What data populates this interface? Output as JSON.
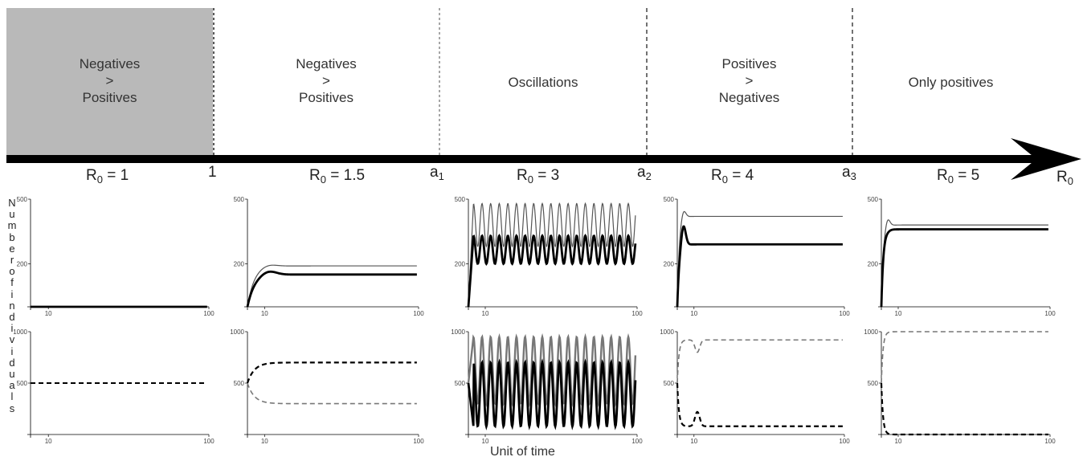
{
  "regions": [
    {
      "lines": [
        "Negatives",
        ">",
        "Positives"
      ],
      "shaded": true
    },
    {
      "lines": [
        "Negatives",
        ">",
        "Positives"
      ],
      "shaded": false
    },
    {
      "lines": [
        "Oscillations"
      ],
      "shaded": false
    },
    {
      "lines": [
        "Positives",
        ">",
        "Negatives"
      ],
      "shaded": false
    },
    {
      "lines": [
        "Only positives"
      ],
      "shaded": false
    }
  ],
  "r0_values": [
    {
      "base": "R",
      "sub": "0",
      "rest": " = 1"
    },
    {
      "base": "R",
      "sub": "0",
      "rest": " = 1.5"
    },
    {
      "base": "R",
      "sub": "0",
      "rest": " = 3"
    },
    {
      "base": "R",
      "sub": "0",
      "rest": " = 4"
    },
    {
      "base": "R",
      "sub": "0",
      "rest": " = 5"
    }
  ],
  "boundaries": [
    {
      "base": "1",
      "sub": ""
    },
    {
      "base": "a",
      "sub": "1"
    },
    {
      "base": "a",
      "sub": "2"
    },
    {
      "base": "a",
      "sub": "3"
    }
  ],
  "axis_end_label": {
    "base": "R",
    "sub": "0"
  },
  "y_axis_title": "Number of individuals",
  "x_axis_title": "Unit of time",
  "colors": {
    "shade": "#b9b9b9",
    "curve_dark": "#000000",
    "curve_light": "#777777",
    "axis": "#000000"
  },
  "chart_data": {
    "type": "line",
    "x_ticks": [
      10,
      100
    ],
    "top_row": {
      "y_ticks": [
        200,
        500
      ],
      "ylim": [
        0,
        500
      ]
    },
    "bottom_row": {
      "y_ticks": [
        500,
        1000
      ],
      "ylim": [
        0,
        1000
      ]
    },
    "panels": [
      {
        "r0": 1,
        "top": {
          "thin_eq": 0,
          "thick_eq": 0,
          "peak": 0,
          "osc": false
        },
        "bottom": {
          "dark_eq": 500,
          "light_eq": 500,
          "split": false
        }
      },
      {
        "r0": 1.5,
        "top": {
          "thin_eq": 190,
          "thick_eq": 150,
          "peak": 200,
          "osc": false
        },
        "bottom": {
          "dark_eq": 700,
          "light_eq": 300,
          "split": true
        }
      },
      {
        "r0": 3,
        "top": {
          "thin_max": 480,
          "thin_min": 280,
          "thick_max": 330,
          "thick_min": 200,
          "osc": true
        },
        "bottom": {
          "light_max": 950,
          "light_min": 300,
          "dark_max": 700,
          "dark_min": 80,
          "osc": true
        }
      },
      {
        "r0": 4,
        "top": {
          "thin_eq": 420,
          "thick_eq": 290,
          "peak": 460,
          "osc": false
        },
        "bottom": {
          "dark_eq": 80,
          "light_eq": 920,
          "split": true
        }
      },
      {
        "r0": 5,
        "top": {
          "thin_eq": 380,
          "thick_eq": 360,
          "peak": 420,
          "osc": false
        },
        "bottom": {
          "dark_eq": 0,
          "light_eq": 1000,
          "split": true
        }
      }
    ]
  }
}
